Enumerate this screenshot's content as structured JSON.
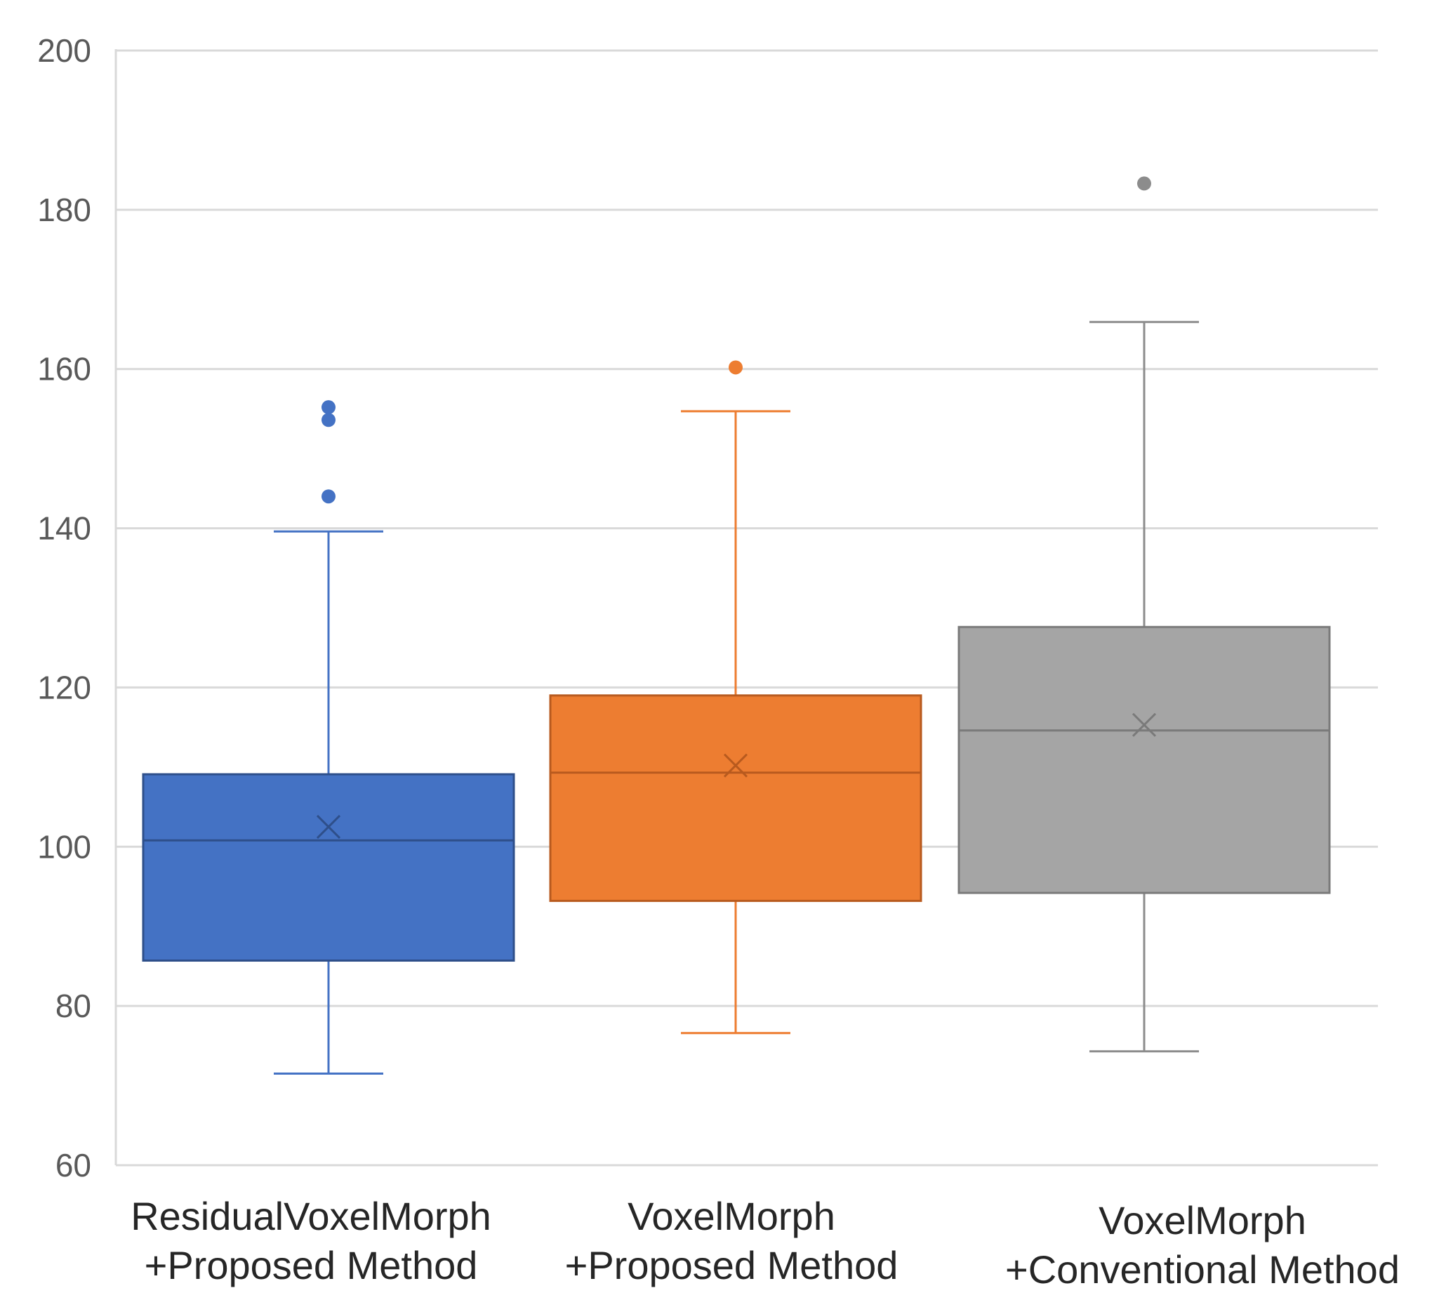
{
  "chart_data": {
    "type": "box",
    "title": "",
    "xlabel": "",
    "ylabel": "",
    "ylim": [
      60,
      200
    ],
    "yticks": [
      60,
      80,
      100,
      120,
      140,
      160,
      180,
      200
    ],
    "ytick_labels": [
      "60",
      "80",
      "100",
      "120",
      "140",
      "160",
      "180",
      "200"
    ],
    "grid": true,
    "series": [
      {
        "name": "ResidualVoxelMorph +Proposed Method",
        "label_lines": [
          "ResidualVoxelMorph",
          "+Proposed Method"
        ],
        "color": "#4472C4",
        "whisker_color": "#4472C4",
        "median_color": "#2E4F8A",
        "min": 71.5,
        "q1": 85.7,
        "median": 100.8,
        "q3": 109.1,
        "max": 139.6,
        "mean": 102.5,
        "outliers": [
          155.2,
          153.6,
          144.0
        ]
      },
      {
        "name": "VoxelMorph +Proposed Method",
        "label_lines": [
          "VoxelMorph",
          "+Proposed Method"
        ],
        "color": "#ED7D31",
        "whisker_color": "#ED7D31",
        "median_color": "#B85A1E",
        "min": 76.6,
        "q1": 93.2,
        "median": 109.3,
        "q3": 119.0,
        "max": 154.7,
        "mean": 110.2,
        "outliers": [
          160.2
        ]
      },
      {
        "name": "VoxelMorph +Conventional Method",
        "label_lines": [
          "VoxelMorph",
          "+Conventional Method"
        ],
        "color": "#A5A5A5",
        "whisker_color": "#8C8C8C",
        "median_color": "#7A7A7A",
        "min": 74.3,
        "q1": 94.2,
        "median": 114.6,
        "q3": 127.6,
        "max": 165.9,
        "mean": 115.3,
        "outliers": [
          183.3
        ]
      }
    ]
  }
}
